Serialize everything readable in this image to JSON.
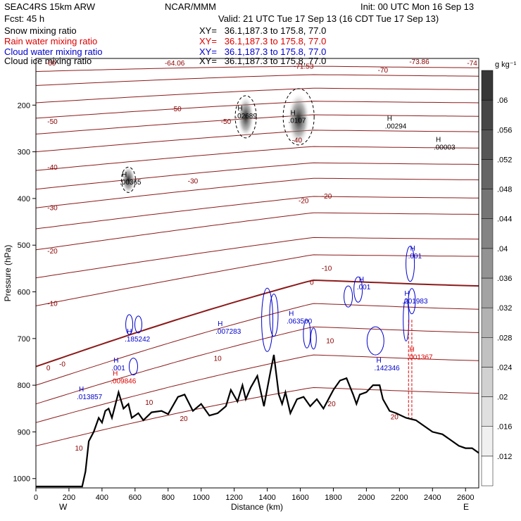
{
  "header": {
    "model": "SEAC4RS 15km ARW",
    "forecast": "Fcst:    45 h",
    "org": "NCAR/MMM",
    "init": "Init: 00 UTC Mon 16 Sep 13",
    "valid": "Valid: 21 UTC Tue 17 Sep 13 (16 CDT Tue 17 Sep 13)"
  },
  "fields": [
    {
      "name": "Snow mixing ratio",
      "xy": "XY=   36.1,187.3 to 175.8, 77.0",
      "color": "#000000"
    },
    {
      "name": "Rain water mixing ratio",
      "xy": "XY=   36.1,187.3 to 175.8, 77.0",
      "color": "#dd0000"
    },
    {
      "name": "Cloud water mixing ratio",
      "xy": "XY=   36.1,187.3 to 175.8, 77.0",
      "color": "#0000cc"
    },
    {
      "name": "Cloud ice mixing ratio",
      "xy": "XY=   36.1,187.3 to 175.8, 77.0",
      "color": "#000000"
    }
  ],
  "colorbar": {
    "unit": "g kg⁻¹",
    "ticks": [
      ".012",
      ".016",
      ".02",
      ".024",
      ".028",
      ".032",
      ".036",
      ".04",
      ".044",
      ".048",
      ".052",
      ".056",
      ".06"
    ]
  },
  "chart_data": {
    "type": "cross-section",
    "xlabel": "Distance (km)",
    "ylabel": "Pressure (hPa)",
    "xlim": [
      0,
      2680
    ],
    "ylim": [
      1020,
      100
    ],
    "xticks": [
      0,
      200,
      400,
      600,
      800,
      1000,
      1200,
      1400,
      1600,
      1800,
      2000,
      2200,
      2400,
      2600
    ],
    "yticks": [
      200,
      300,
      400,
      500,
      600,
      700,
      800,
      900,
      1000
    ],
    "x_end_labels": {
      "left": "W",
      "right": "E"
    },
    "terrain": [
      [
        0,
        1017
      ],
      [
        280,
        1017
      ],
      [
        300,
        985
      ],
      [
        320,
        920
      ],
      [
        350,
        900
      ],
      [
        380,
        870
      ],
      [
        400,
        880
      ],
      [
        420,
        855
      ],
      [
        440,
        850
      ],
      [
        460,
        870
      ],
      [
        500,
        815
      ],
      [
        530,
        850
      ],
      [
        560,
        840
      ],
      [
        580,
        870
      ],
      [
        620,
        860
      ],
      [
        650,
        875
      ],
      [
        700,
        858
      ],
      [
        760,
        855
      ],
      [
        800,
        862
      ],
      [
        860,
        825
      ],
      [
        900,
        820
      ],
      [
        950,
        855
      ],
      [
        1000,
        840
      ],
      [
        1050,
        865
      ],
      [
        1100,
        860
      ],
      [
        1150,
        845
      ],
      [
        1180,
        810
      ],
      [
        1220,
        835
      ],
      [
        1250,
        800
      ],
      [
        1270,
        830
      ],
      [
        1300,
        805
      ],
      [
        1340,
        780
      ],
      [
        1380,
        845
      ],
      [
        1420,
        770
      ],
      [
        1440,
        735
      ],
      [
        1470,
        820
      ],
      [
        1490,
        840
      ],
      [
        1510,
        815
      ],
      [
        1540,
        860
      ],
      [
        1580,
        830
      ],
      [
        1620,
        825
      ],
      [
        1660,
        845
      ],
      [
        1700,
        830
      ],
      [
        1740,
        850
      ],
      [
        1800,
        810
      ],
      [
        1840,
        790
      ],
      [
        1880,
        785
      ],
      [
        1920,
        820
      ],
      [
        1940,
        840
      ],
      [
        1960,
        820
      ],
      [
        2000,
        815
      ],
      [
        2040,
        800
      ],
      [
        2080,
        800
      ],
      [
        2100,
        830
      ],
      [
        2140,
        855
      ],
      [
        2180,
        860
      ],
      [
        2240,
        870
      ],
      [
        2300,
        875
      ],
      [
        2340,
        885
      ],
      [
        2400,
        900
      ],
      [
        2460,
        905
      ],
      [
        2500,
        915
      ],
      [
        2560,
        930
      ],
      [
        2600,
        935
      ],
      [
        2640,
        935
      ],
      [
        2680,
        945
      ]
    ],
    "temperature_labels": [
      {
        "v": "-74",
        "x": 2640,
        "p": 115
      },
      {
        "v": "-73.86",
        "x": 2320,
        "p": 112
      },
      {
        "v": "-71.53",
        "x": 1620,
        "p": 122
      },
      {
        "v": "-64.06",
        "x": 840,
        "p": 115
      },
      {
        "v": "-70",
        "x": 2100,
        "p": 130
      },
      {
        "v": "-60",
        "x": 90,
        "p": 115
      },
      {
        "v": "-50",
        "x": 850,
        "p": 213
      },
      {
        "v": "-50",
        "x": 100,
        "p": 240
      },
      {
        "v": "-50",
        "x": 1150,
        "p": 240
      },
      {
        "v": "-40",
        "x": 1580,
        "p": 280
      },
      {
        "v": "-40",
        "x": 100,
        "p": 338
      },
      {
        "v": "-30",
        "x": 950,
        "p": 368
      },
      {
        "v": "-30",
        "x": 100,
        "p": 425
      },
      {
        "v": "-20",
        "x": 1760,
        "p": 400
      },
      {
        "v": "-20",
        "x": 1620,
        "p": 410
      },
      {
        "v": "-20",
        "x": 100,
        "p": 518
      },
      {
        "v": "-10",
        "x": 1760,
        "p": 555
      },
      {
        "v": "-10",
        "x": 100,
        "p": 630
      },
      {
        "v": "0",
        "x": 1670,
        "p": 585
      },
      {
        "v": "0",
        "x": 75,
        "p": 768
      },
      {
        "v": "-0",
        "x": 160,
        "p": 760
      },
      {
        "v": "10",
        "x": 1100,
        "p": 748
      },
      {
        "v": "10",
        "x": 1780,
        "p": 710
      },
      {
        "v": "10",
        "x": 685,
        "p": 842
      },
      {
        "v": "10",
        "x": 260,
        "p": 940
      },
      {
        "v": "20",
        "x": 895,
        "p": 877
      },
      {
        "v": "20",
        "x": 1790,
        "p": 845
      },
      {
        "v": "20",
        "x": 2170,
        "p": 873
      }
    ],
    "maxima": [
      {
        "v": ".02689",
        "x": 1220,
        "p": 228,
        "color": "#000000"
      },
      {
        "v": ".0107",
        "x": 1540,
        "p": 238,
        "color": "#000000"
      },
      {
        "v": ".00294",
        "x": 2125,
        "p": 250,
        "color": "#000000"
      },
      {
        "v": ".00003",
        "x": 2420,
        "p": 295,
        "color": "#000000"
      },
      {
        "v": ".00365",
        "x": 520,
        "p": 370,
        "color": "#000000"
      },
      {
        "v": ".001",
        "x": 2265,
        "p": 528,
        "color": "#0000cc"
      },
      {
        "v": ".001",
        "x": 1955,
        "p": 595,
        "color": "#0000cc"
      },
      {
        "v": ".201983",
        "x": 2230,
        "p": 625,
        "color": "#0000cc"
      },
      {
        "v": ".063500",
        "x": 1530,
        "p": 668,
        "color": "#0000cc"
      },
      {
        "v": ".007283",
        "x": 1100,
        "p": 690,
        "color": "#0000cc"
      },
      {
        "v": ".185242",
        "x": 550,
        "p": 706,
        "color": "#0000cc"
      },
      {
        "v": ".001",
        "x": 470,
        "p": 768,
        "color": "#0000cc"
      },
      {
        "v": ".009846",
        "x": 465,
        "p": 796,
        "color": "#dd0000"
      },
      {
        "v": ".142346",
        "x": 2060,
        "p": 768,
        "color": "#0000cc"
      },
      {
        "v": ".001367",
        "x": 2260,
        "p": 745,
        "color": "#dd0000"
      },
      {
        "v": ".013857",
        "x": 260,
        "p": 830,
        "color": "#0000cc"
      }
    ]
  }
}
